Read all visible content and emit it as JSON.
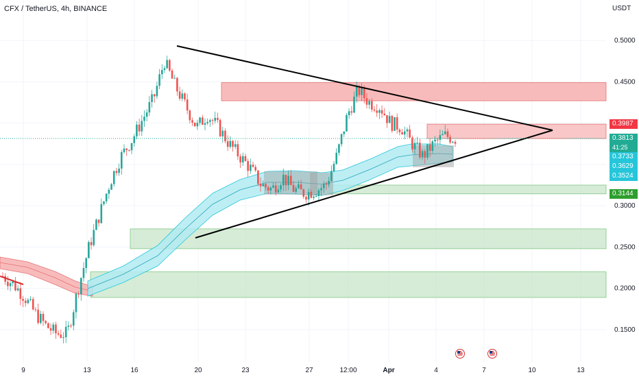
{
  "header": {
    "title": "CFX / TetherUS, 4h, BINANCE",
    "currency": "USDT"
  },
  "y_ticks": [
    "0.5000",
    "0.4500",
    "0.3000",
    "0.2500",
    "0.2000",
    "0.1500"
  ],
  "x_ticks": [
    "9",
    "13",
    "16",
    "20",
    "23",
    "27",
    "12:00",
    "Apr",
    "4",
    "7",
    "10",
    "13"
  ],
  "price_tags": {
    "upper_red": "0.3987",
    "current": "0.3813",
    "countdown": "41:25",
    "band_a": "0.3733",
    "band_b": "0.3629",
    "band_c": "0.3524",
    "lower_green": "0.3144"
  },
  "colors": {
    "up": "#26a69a",
    "down": "#ef5350",
    "supply_zone": "#f7b4b4",
    "demand_zone": "#c8e6c9",
    "ribbon_cyan": "#b2ebf2",
    "ribbon_red": "#f8bbbb",
    "tag_red": "#f23645",
    "tag_green_current": "#22ab94",
    "tag_cyan": "#26c6da",
    "tag_green": "#2e9e2e"
  },
  "chart_data": {
    "type": "candlestick",
    "title": "CFX / TetherUS, 4h, BINANCE",
    "y_unit": "USDT",
    "ylim": [
      0.13,
      0.53
    ],
    "x_labels": [
      "9",
      "13",
      "16",
      "20",
      "23",
      "27",
      "12:00",
      "Apr",
      "4",
      "7",
      "10",
      "13"
    ],
    "close_path": [
      0.215,
      0.205,
      0.19,
      0.17,
      0.155,
      0.145,
      0.145,
      0.2,
      0.25,
      0.29,
      0.33,
      0.36,
      0.38,
      0.405,
      0.43,
      0.475,
      0.445,
      0.42,
      0.395,
      0.41,
      0.395,
      0.375,
      0.36,
      0.345,
      0.325,
      0.32,
      0.335,
      0.32,
      0.315,
      0.318,
      0.325,
      0.36,
      0.41,
      0.44,
      0.425,
      0.42,
      0.4,
      0.395,
      0.375,
      0.36,
      0.375,
      0.385,
      0.381
    ],
    "last_price": 0.3813,
    "zones": [
      {
        "kind": "supply",
        "from": 0.427,
        "to": 0.449
      },
      {
        "kind": "supply",
        "from": 0.3813,
        "to": 0.3987
      },
      {
        "kind": "demand",
        "from": 0.3144,
        "to": 0.325
      },
      {
        "kind": "demand",
        "from": 0.248,
        "to": 0.272
      },
      {
        "kind": "demand",
        "from": 0.189,
        "to": 0.22
      }
    ],
    "moving_average_bands": [
      0.3733,
      0.3629,
      0.3524
    ],
    "triangle_pattern": true
  }
}
